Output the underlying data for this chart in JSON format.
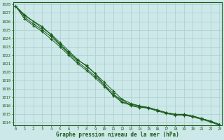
{
  "xlabel": "Graphe pression niveau de la mer (hPa)",
  "ylim": [
    1014,
    1028
  ],
  "xlim": [
    0,
    23
  ],
  "yticks": [
    1014,
    1015,
    1016,
    1017,
    1018,
    1019,
    1020,
    1021,
    1022,
    1023,
    1024,
    1025,
    1026,
    1027,
    1028
  ],
  "xticks": [
    0,
    1,
    2,
    3,
    4,
    5,
    6,
    7,
    8,
    9,
    10,
    11,
    12,
    13,
    14,
    15,
    16,
    17,
    18,
    19,
    20,
    21,
    22,
    23
  ],
  "bg_color": "#cce8e8",
  "line_color": "#1a5c1a",
  "grid_color": "#aacece",
  "series": [
    [
      1027.8,
      1026.7,
      1026.0,
      1025.4,
      1024.4,
      1023.3,
      1022.3,
      1021.4,
      1020.8,
      1019.8,
      1018.5,
      1017.2,
      1016.8,
      1016.0,
      1015.8,
      1015.8,
      1015.5,
      1015.2,
      1015.0,
      1015.0,
      1014.8,
      1014.5,
      1014.2,
      1013.8
    ],
    [
      1027.8,
      1026.5,
      1025.7,
      1025.0,
      1024.2,
      1023.2,
      1022.2,
      1021.2,
      1020.4,
      1019.5,
      1018.5,
      1017.5,
      1016.5,
      1016.2,
      1016.0,
      1015.8,
      1015.5,
      1015.2,
      1015.0,
      1015.0,
      1014.8,
      1014.5,
      1014.2,
      1013.8
    ],
    [
      1027.8,
      1026.3,
      1025.5,
      1024.8,
      1023.9,
      1023.0,
      1022.0,
      1021.0,
      1020.2,
      1019.3,
      1018.3,
      1017.3,
      1016.4,
      1016.1,
      1015.9,
      1015.7,
      1015.4,
      1015.1,
      1014.9,
      1014.9,
      1014.7,
      1014.4,
      1014.1,
      1013.7
    ],
    [
      1027.8,
      1026.8,
      1026.0,
      1025.2,
      1024.5,
      1023.5,
      1022.5,
      1021.5,
      1020.7,
      1019.8,
      1018.8,
      1017.8,
      1016.8,
      1016.3,
      1016.0,
      1015.8,
      1015.5,
      1015.2,
      1015.0,
      1014.9,
      1014.8,
      1014.5,
      1014.2,
      1013.8
    ]
  ]
}
